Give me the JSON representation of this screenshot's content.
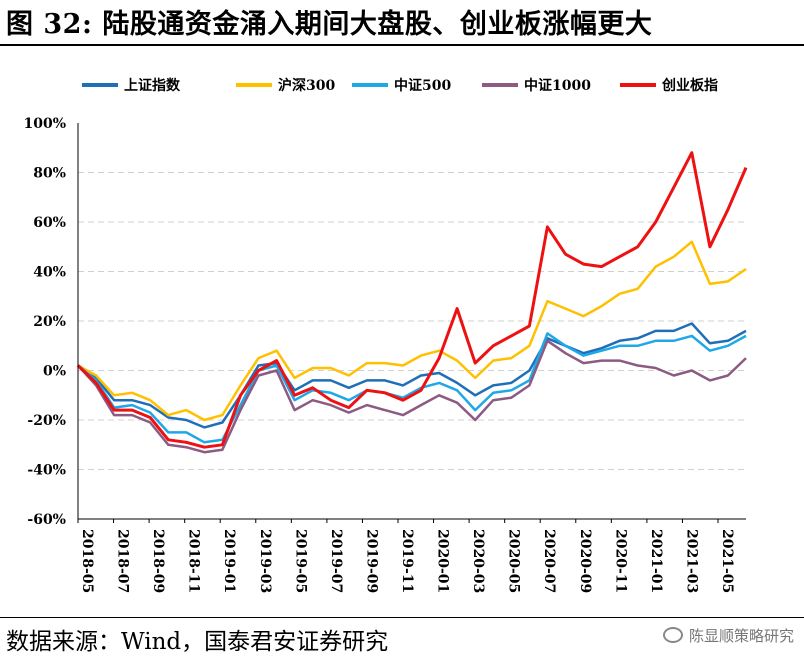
{
  "title": "图 32: 陆股通资金涌入期间大盘股、创业板涨幅更大",
  "source": "数据来源：Wind，国泰君安证券研究",
  "watermark": "陈显顺策略研究",
  "colors": {
    "上证指数": "#1f6fb8",
    "沪深300": "#ffc000",
    "中证500": "#1fa8e8",
    "中证1000": "#8c5a83",
    "创业板指": "#ee1111"
  },
  "chart_data": {
    "type": "line",
    "xlabel": "",
    "ylabel": "",
    "ylim": [
      -60,
      100
    ],
    "yticks": [
      "100%",
      "80%",
      "60%",
      "40%",
      "20%",
      "0%",
      "-20%",
      "-40%",
      "-60%"
    ],
    "x_ticks": [
      "2018-05",
      "2018-07",
      "2018-09",
      "2018-11",
      "2019-01",
      "2019-03",
      "2019-05",
      "2019-07",
      "2019-09",
      "2019-11",
      "2020-01",
      "2020-03",
      "2020-05",
      "2020-07",
      "2020-09",
      "2020-11",
      "2021-01",
      "2021-03",
      "2021-05"
    ],
    "x": [
      "2018-05",
      "2018-06",
      "2018-07",
      "2018-08",
      "2018-09",
      "2018-10",
      "2018-11",
      "2018-12",
      "2019-01",
      "2019-02",
      "2019-03",
      "2019-04",
      "2019-05",
      "2019-06",
      "2019-07",
      "2019-08",
      "2019-09",
      "2019-10",
      "2019-11",
      "2019-12",
      "2020-01",
      "2020-02",
      "2020-03",
      "2020-04",
      "2020-05",
      "2020-06",
      "2020-07",
      "2020-08",
      "2020-09",
      "2020-10",
      "2020-11",
      "2020-12",
      "2021-01",
      "2021-02",
      "2021-03",
      "2021-04",
      "2021-05",
      "2021-06"
    ],
    "series": [
      {
        "name": "上证指数",
        "values": [
          2,
          -3,
          -12,
          -12,
          -14,
          -19,
          -20,
          -23,
          -21,
          -10,
          2,
          3,
          -8,
          -4,
          -4,
          -7,
          -4,
          -4,
          -6,
          -2,
          -1,
          -5,
          -10,
          -6,
          -5,
          0,
          13,
          10,
          7,
          9,
          12,
          13,
          16,
          16,
          19,
          11,
          12,
          16
        ]
      },
      {
        "name": "沪深300",
        "values": [
          2,
          -2,
          -10,
          -9,
          -12,
          -18,
          -16,
          -20,
          -18,
          -6,
          5,
          8,
          -3,
          1,
          1,
          -2,
          3,
          3,
          2,
          6,
          8,
          4,
          -3,
          4,
          5,
          10,
          28,
          25,
          22,
          26,
          31,
          33,
          42,
          46,
          52,
          35,
          36,
          41
        ]
      },
      {
        "name": "中证500",
        "values": [
          2,
          -4,
          -15,
          -14,
          -17,
          -25,
          -25,
          -29,
          -28,
          -14,
          0,
          2,
          -12,
          -8,
          -9,
          -12,
          -8,
          -9,
          -11,
          -7,
          -5,
          -8,
          -16,
          -9,
          -8,
          -4,
          15,
          10,
          6,
          8,
          10,
          10,
          12,
          12,
          14,
          8,
          10,
          14
        ]
      },
      {
        "name": "中证1000",
        "values": [
          2,
          -6,
          -18,
          -18,
          -21,
          -30,
          -31,
          -33,
          -32,
          -16,
          -2,
          0,
          -16,
          -12,
          -14,
          -17,
          -14,
          -16,
          -18,
          -14,
          -10,
          -13,
          -20,
          -12,
          -11,
          -6,
          12,
          7,
          3,
          4,
          4,
          2,
          1,
          -2,
          0,
          -4,
          -2,
          5
        ]
      },
      {
        "name": "创业板指",
        "values": [
          2,
          -5,
          -16,
          -16,
          -19,
          -28,
          -29,
          -31,
          -30,
          -10,
          0,
          4,
          -10,
          -7,
          -12,
          -15,
          -8,
          -9,
          -12,
          -8,
          5,
          25,
          3,
          10,
          14,
          18,
          58,
          47,
          43,
          42,
          46,
          50,
          60,
          74,
          88,
          50,
          65,
          82
        ]
      }
    ]
  }
}
